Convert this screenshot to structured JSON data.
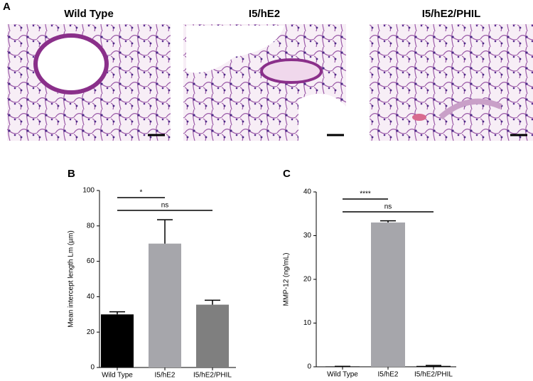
{
  "panel_a": {
    "label": "A",
    "images": [
      {
        "title": "Wild Type"
      },
      {
        "title": "I5/hE2"
      },
      {
        "title": "I5/hE2/PHIL"
      }
    ]
  },
  "chart_data": [
    {
      "type": "bar",
      "label": "B",
      "ylabel": "Mean intercept length Lm (µm)",
      "categories": [
        "Wild Type",
        "I5/hE2",
        "I5/hE2/PHIL"
      ],
      "values": [
        30,
        70,
        35.5
      ],
      "errors": [
        1.5,
        13.5,
        2.5
      ],
      "colors": [
        "#000000",
        "#a6a6ab",
        "#7f7f7f"
      ],
      "ylim": [
        0,
        100
      ],
      "yticks": [
        0,
        20,
        40,
        60,
        80,
        100
      ],
      "annotations": [
        {
          "text": "*",
          "from": 0,
          "to": 1
        },
        {
          "text": "ns",
          "from": 0,
          "to": 2
        }
      ]
    },
    {
      "type": "bar",
      "label": "C",
      "ylabel": "MMP-12  (ng/mL)",
      "categories": [
        "Wild Type",
        "I5/hE2",
        "I5/hE2/PHIL"
      ],
      "values": [
        0.1,
        33,
        0.2
      ],
      "errors": [
        0,
        0.4,
        0.1
      ],
      "colors": [
        "#000000",
        "#a6a6ab",
        "#000000"
      ],
      "ylim": [
        0,
        40
      ],
      "yticks": [
        0,
        10,
        20,
        30,
        40
      ],
      "annotations": [
        {
          "text": "****",
          "from": 0,
          "to": 1
        },
        {
          "text": "ns",
          "from": 0,
          "to": 2
        }
      ]
    }
  ]
}
